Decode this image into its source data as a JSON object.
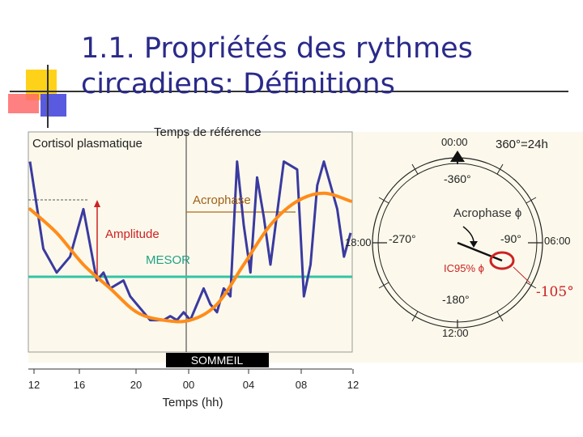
{
  "title": {
    "line1": "1.1. Propriétés des rythmes",
    "line2": "circadiens: Définitions"
  },
  "labels": {
    "cortisol": "Cortisol plasmatique",
    "temps_reference": "Temps de référence",
    "acrophase": "Acrophase",
    "amplitude": "Amplitude",
    "mesor": "MESOR",
    "sommeil": "SOMMEIL",
    "xaxis_title": "Temps (hh)"
  },
  "x_ticks": [
    "12",
    "16",
    "20",
    "00",
    "04",
    "08",
    "12"
  ],
  "clock": {
    "top": "00:00",
    "top_right": "360°=24h",
    "deg_top": "-360°",
    "acrophase_phi": "Acrophase ϕ",
    "left": "18:00",
    "deg_left": "-270°",
    "deg_right": "-90°",
    "right": "06:00",
    "ic95": "IC95% ϕ",
    "deg_bottom": "-180°",
    "bottom": "12:00",
    "value": "-105°"
  },
  "colors": {
    "title": "#2a2a8a",
    "data_line": "#3a3aa0",
    "fit_curve": "#ff8c1a",
    "mesor_line": "#33c4a6",
    "acrophase_line": "#b06a1a",
    "amplitude_arrow": "#cc2222",
    "value_text": "#cc2222",
    "panel": "#fcf9ec"
  },
  "chart_data": {
    "type": "line",
    "title": "",
    "xlabel": "Temps (hh)",
    "ylabel": "Cortisol plasmatique",
    "x_ticks": [
      "12",
      "16",
      "20",
      "00",
      "04",
      "08",
      "12"
    ],
    "series": [
      {
        "name": "",
        "kind": "observed",
        "x": [
          12,
          13,
          14,
          15,
          16,
          17,
          17.5,
          18,
          19,
          19.5,
          20,
          20.5,
          21,
          22,
          22.5,
          23,
          23.5,
          24,
          25,
          25.5,
          26,
          26.5,
          27,
          27.5,
          28,
          28.5,
          29,
          29.5,
          30,
          31,
          32,
          32.5,
          33,
          33.5,
          34,
          34.5,
          35,
          35.5,
          36
        ],
        "y": [
          23,
          12,
          9,
          11,
          17,
          8,
          9,
          7,
          8,
          6,
          5,
          4,
          3,
          3,
          3.5,
          3,
          4,
          3,
          7,
          5,
          4,
          7,
          6,
          23,
          15,
          9,
          21,
          16,
          10,
          23,
          22,
          6,
          10,
          20,
          23,
          20,
          17,
          11,
          14
        ]
      },
      {
        "name": "",
        "kind": "fit",
        "x": [
          12,
          14,
          16,
          18,
          20,
          22,
          24,
          26,
          28,
          30,
          32,
          34,
          36
        ],
        "y": [
          17,
          14,
          10,
          7,
          4,
          3,
          3,
          5,
          10,
          15,
          18,
          19,
          18
        ]
      }
    ],
    "mesor": 9,
    "acrophase_value": 18.5
  }
}
